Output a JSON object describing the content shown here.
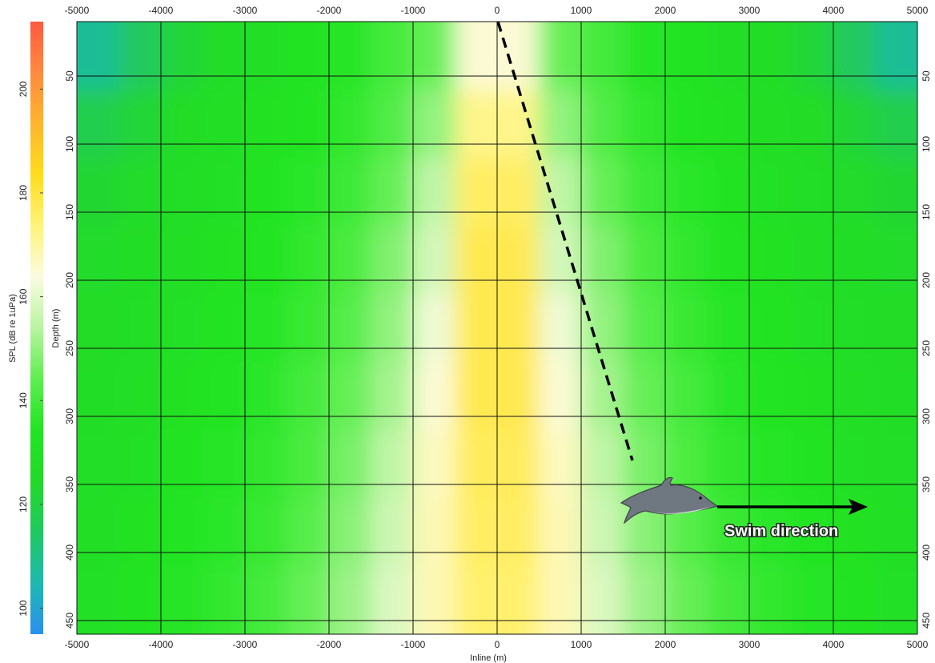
{
  "chart_data": {
    "type": "heatmap",
    "xlabel": "Inline (m)",
    "ylabel": "Depth (m)",
    "zlabel": "SPL (dB re 1uPa)",
    "annotation": "Swim direction",
    "x": [
      -4750,
      -4250,
      -3750,
      -3250,
      -2750,
      -2250,
      -1750,
      -1250,
      -750,
      -250,
      250,
      750,
      1250,
      1750,
      2250,
      2750,
      3250,
      3750,
      4250,
      4750
    ],
    "y": [
      35,
      85,
      135,
      185,
      235,
      285,
      335,
      385,
      435
    ],
    "z": [
      [
        108,
        115,
        122,
        128,
        130,
        133,
        135,
        140,
        145,
        165,
        165,
        145,
        140,
        135,
        133,
        130,
        128,
        122,
        115,
        108
      ],
      [
        118,
        122,
        127,
        130,
        132,
        134,
        137,
        142,
        150,
        172,
        172,
        150,
        142,
        137,
        134,
        132,
        130,
        127,
        122,
        118
      ],
      [
        123,
        126,
        129,
        131,
        133,
        136,
        139,
        145,
        155,
        176,
        176,
        155,
        145,
        139,
        136,
        133,
        131,
        129,
        126,
        123
      ],
      [
        126,
        128,
        130,
        132,
        134,
        137,
        141,
        148,
        158,
        178,
        178,
        158,
        148,
        141,
        137,
        134,
        132,
        130,
        128,
        126
      ],
      [
        127,
        129,
        131,
        133,
        135,
        138,
        143,
        150,
        162,
        178,
        178,
        162,
        150,
        143,
        138,
        135,
        133,
        131,
        129,
        127
      ],
      [
        128,
        130,
        132,
        134,
        136,
        140,
        145,
        152,
        165,
        178,
        178,
        165,
        152,
        145,
        140,
        136,
        134,
        132,
        130,
        128
      ],
      [
        129,
        131,
        133,
        135,
        137,
        141,
        147,
        155,
        167,
        177,
        177,
        167,
        155,
        147,
        141,
        137,
        135,
        133,
        131,
        129
      ],
      [
        130,
        132,
        134,
        136,
        138,
        143,
        149,
        157,
        168,
        176,
        176,
        168,
        157,
        149,
        143,
        138,
        136,
        134,
        132,
        130
      ],
      [
        131,
        133,
        135,
        137,
        140,
        145,
        151,
        159,
        168,
        175,
        175,
        168,
        159,
        151,
        145,
        140,
        137,
        135,
        133,
        131
      ]
    ],
    "xlim": [
      -5000,
      5000
    ],
    "xticks": [
      -5000,
      -4000,
      -3000,
      -2000,
      -1000,
      0,
      1000,
      2000,
      3000,
      4000,
      5000
    ],
    "ylim": [
      10,
      460
    ],
    "y_inverted": true,
    "yticks": [
      50,
      100,
      150,
      200,
      250,
      300,
      350,
      400,
      450
    ],
    "zlim": [
      95,
      213
    ],
    "zticks": [
      100,
      120,
      140,
      160,
      180,
      200
    ],
    "colorscale": [
      "#2b8ff0",
      "#1fb8b0",
      "#20c860",
      "#22d92a",
      "#22e422",
      "#5eee50",
      "#b8f4a0",
      "#fbfbe0",
      "#fff47a",
      "#ffdc1e",
      "#ffb52e",
      "#ff8a40",
      "#ff5a40"
    ],
    "grid": true
  }
}
